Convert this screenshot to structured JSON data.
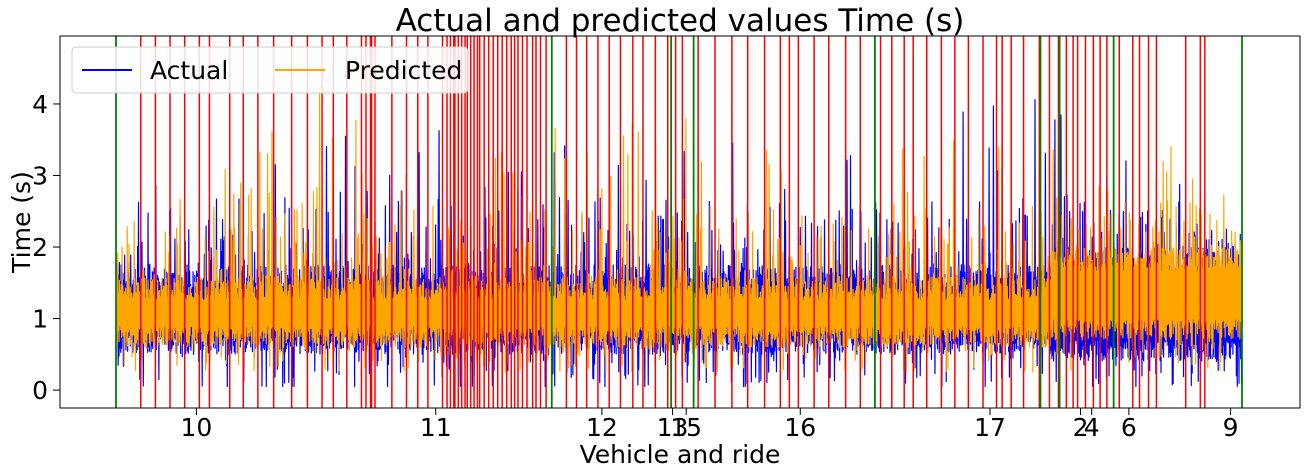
{
  "chart_data": {
    "type": "line",
    "title": "Actual and predicted values Time (s)",
    "xlabel": "Vehicle and ride",
    "ylabel": "Time (s)",
    "ylim": [
      -0.25,
      4.95
    ],
    "yticks": [
      0,
      1,
      2,
      3,
      4
    ],
    "grid": false,
    "legend": {
      "placement": "top-left",
      "columns": 2
    },
    "xticks": [
      {
        "label": "10",
        "pos": 0.11
      },
      {
        "label": "11",
        "pos": 0.303
      },
      {
        "label": "12",
        "pos": 0.437
      },
      {
        "label": "13",
        "pos": 0.494
      },
      {
        "label": "15",
        "pos": 0.505
      },
      {
        "label": "16",
        "pos": 0.597
      },
      {
        "label": "17",
        "pos": 0.75
      },
      {
        "label": "2",
        "pos": 0.823
      },
      {
        "label": "4",
        "pos": 0.832
      },
      {
        "label": "6",
        "pos": 0.862
      },
      {
        "label": "9",
        "pos": 0.944
      }
    ],
    "series": [
      {
        "name": "Actual",
        "color": "#0000ff",
        "envelope": {
          "base_low": 0.5,
          "base_high": 1.75,
          "spike_max": [
            [
              0.0,
              1.6
            ],
            [
              0.025,
              3.45
            ],
            [
              0.045,
              3.8
            ],
            [
              0.06,
              3.1
            ],
            [
              0.09,
              2.9
            ],
            [
              0.11,
              2.8
            ],
            [
              0.13,
              3.4
            ],
            [
              0.155,
              2.9
            ],
            [
              0.19,
              3.9
            ],
            [
              0.23,
              3.3
            ],
            [
              0.27,
              3.7
            ],
            [
              0.3,
              3.7
            ],
            [
              0.33,
              3.8
            ],
            [
              0.36,
              3.5
            ],
            [
              0.39,
              3.9
            ],
            [
              0.42,
              3.4
            ],
            [
              0.45,
              3.7
            ],
            [
              0.48,
              3.3
            ],
            [
              0.51,
              3.8
            ],
            [
              0.55,
              3.5
            ],
            [
              0.585,
              3.9
            ],
            [
              0.62,
              3.5
            ],
            [
              0.66,
              3.7
            ],
            [
              0.7,
              3.4
            ],
            [
              0.74,
              3.9
            ],
            [
              0.78,
              4.45
            ],
            [
              0.81,
              4.25
            ],
            [
              0.84,
              4.05
            ],
            [
              0.87,
              3.3
            ],
            [
              0.9,
              3.3
            ],
            [
              0.93,
              3.3
            ],
            [
              0.96,
              2.6
            ],
            [
              1.0,
              2.2
            ]
          ],
          "min_dips": 0.0
        }
      },
      {
        "name": "Predicted",
        "color": "#ffa500",
        "envelope": {
          "base_low": 0.6,
          "base_high": 1.6,
          "spike_max": [
            [
              0.0,
              2.6
            ],
            [
              0.02,
              4.0
            ],
            [
              0.05,
              3.6
            ],
            [
              0.09,
              3.0
            ],
            [
              0.13,
              3.6
            ],
            [
              0.155,
              4.2
            ],
            [
              0.19,
              4.3
            ],
            [
              0.23,
              3.6
            ],
            [
              0.27,
              4.15
            ],
            [
              0.31,
              3.6
            ],
            [
              0.35,
              3.5
            ],
            [
              0.4,
              3.7
            ],
            [
              0.44,
              3.5
            ],
            [
              0.48,
              4.1
            ],
            [
              0.52,
              3.9
            ],
            [
              0.555,
              4.3
            ],
            [
              0.6,
              3.4
            ],
            [
              0.64,
              3.4
            ],
            [
              0.68,
              3.5
            ],
            [
              0.72,
              3.3
            ],
            [
              0.76,
              3.9
            ],
            [
              0.8,
              3.8
            ],
            [
              0.84,
              3.5
            ],
            [
              0.88,
              3.3
            ],
            [
              0.92,
              2.9
            ],
            [
              0.955,
              4.0
            ],
            [
              0.98,
              3.3
            ],
            [
              1.0,
              2.2
            ]
          ],
          "min_dips": 0.25
        }
      }
    ],
    "boundaries": {
      "green": [
        0.0,
        0.387,
        0.493,
        0.513,
        0.674,
        0.821,
        0.838,
        0.886,
        1.0
      ],
      "red": [
        0.022,
        0.035,
        0.048,
        0.061,
        0.074,
        0.083,
        0.101,
        0.113,
        0.126,
        0.14,
        0.156,
        0.17,
        0.183,
        0.193,
        0.205,
        0.218,
        0.222,
        0.226,
        0.227,
        0.23,
        0.245,
        0.258,
        0.268,
        0.277,
        0.29,
        0.294,
        0.297,
        0.3,
        0.301,
        0.304,
        0.307,
        0.31,
        0.312,
        0.315,
        0.318,
        0.321,
        0.323,
        0.327,
        0.331,
        0.335,
        0.339,
        0.343,
        0.347,
        0.351,
        0.354,
        0.357,
        0.361,
        0.365,
        0.37,
        0.373,
        0.377,
        0.382,
        0.4,
        0.409,
        0.418,
        0.428,
        0.438,
        0.448,
        0.459,
        0.468,
        0.479,
        0.49,
        0.497,
        0.503,
        0.517,
        0.532,
        0.547,
        0.561,
        0.576,
        0.59,
        0.598,
        0.606,
        0.62,
        0.633,
        0.648,
        0.661,
        0.679,
        0.689,
        0.7,
        0.708,
        0.72,
        0.733,
        0.745,
        0.757,
        0.77,
        0.782,
        0.787,
        0.795,
        0.806,
        0.82,
        0.829,
        0.837,
        0.844,
        0.85,
        0.854,
        0.861,
        0.868,
        0.874,
        0.88,
        0.891,
        0.903,
        0.909,
        0.917,
        0.924,
        0.95,
        0.963,
        0.967
      ]
    }
  }
}
